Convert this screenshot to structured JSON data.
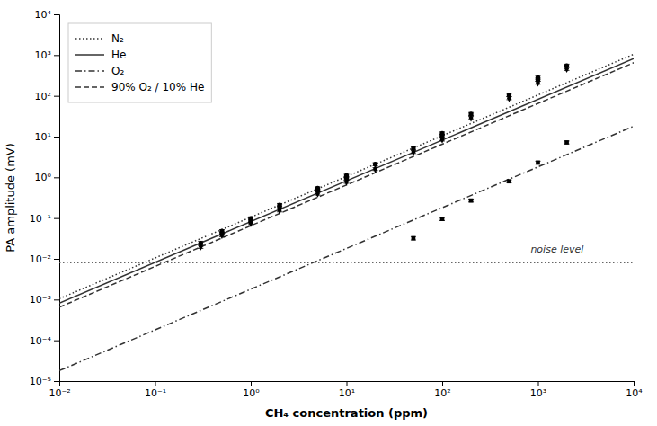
{
  "chart_data": {
    "type": "line",
    "log": true,
    "xlabel": "CH₄ concentration (ppm)",
    "ylabel": "PA amplitude (mV)",
    "xlim": [
      0.01,
      10000
    ],
    "ylim": [
      1e-05,
      10000
    ],
    "xticks": [
      {
        "value": 0.01,
        "label": "10⁻²"
      },
      {
        "value": 0.1,
        "label": "10⁻¹"
      },
      {
        "value": 1,
        "label": "10⁰"
      },
      {
        "value": 10,
        "label": "10¹"
      },
      {
        "value": 100,
        "label": "10²"
      },
      {
        "value": 1000,
        "label": "10³"
      },
      {
        "value": 10000,
        "label": "10⁴"
      }
    ],
    "yticks": [
      {
        "value": 1e-05,
        "label": "10⁻⁵"
      },
      {
        "value": 0.0001,
        "label": "10⁻⁴"
      },
      {
        "value": 0.001,
        "label": "10⁻³"
      },
      {
        "value": 0.01,
        "label": "10⁻²"
      },
      {
        "value": 0.1,
        "label": "10⁻¹"
      },
      {
        "value": 1,
        "label": "10⁰"
      },
      {
        "value": 10,
        "label": "10¹"
      },
      {
        "value": 100,
        "label": "10²"
      },
      {
        "value": 1000,
        "label": "10³"
      },
      {
        "value": 10000,
        "label": "10⁴"
      }
    ],
    "grid": false,
    "legend": "upper left",
    "series": [
      {
        "name": "N₂",
        "type": "line",
        "line_style": "dotted",
        "color": "#333333",
        "x": [
          0.01,
          10000
        ],
        "values": [
          0.00105,
          1050
        ]
      },
      {
        "name": "He",
        "type": "line",
        "line_style": "solid",
        "color": "#333333",
        "x": [
          0.01,
          10000
        ],
        "values": [
          0.00082,
          820
        ]
      },
      {
        "name": "O₂",
        "type": "line",
        "line_style": "dashdot",
        "color": "#333333",
        "x": [
          0.01,
          10000
        ],
        "values": [
          1.8e-05,
          18
        ]
      },
      {
        "name": "90% O₂ / 10% He",
        "type": "line",
        "line_style": "dashed",
        "color": "#333333",
        "x": [
          0.01,
          10000
        ],
        "values": [
          0.00065,
          650
        ]
      },
      {
        "type": "scatter",
        "marker": "circle",
        "color": "black",
        "x": [
          0.3,
          0.5,
          0.5,
          1.0,
          1.0,
          2.0,
          2.0,
          5.0,
          5.0,
          10.0,
          10.0,
          20.0,
          50.0,
          100.0,
          100.0,
          200.0,
          500.0,
          1000.0,
          1000.0,
          2000.0
        ],
        "values": [
          0.024,
          0.042,
          0.048,
          0.085,
          0.098,
          0.185,
          0.21,
          0.48,
          0.54,
          0.95,
          1.1,
          2.1,
          5.2,
          10.5,
          12.0,
          36.0,
          105.0,
          250.0,
          280.0,
          550.0
        ],
        "yerr": [
          0.003,
          0.004,
          0.004,
          0.008,
          0.009,
          0.015,
          0.018,
          0.04,
          0.045,
          0.08,
          0.09,
          0.18,
          0.4,
          0.9,
          1.0,
          3.0,
          9.0,
          22.0,
          25.0,
          50.0
        ]
      },
      {
        "type": "scatter",
        "marker": "diamond",
        "color": "black",
        "x": [
          0.3,
          0.5,
          1.0,
          2.0,
          5.0,
          10.0,
          20.0,
          50.0,
          100.0,
          200.0,
          500.0,
          1000.0,
          2000.0
        ],
        "values": [
          0.02,
          0.038,
          0.075,
          0.155,
          0.4,
          0.78,
          1.6,
          4.2,
          8.5,
          29.0,
          88.0,
          210.0,
          460.0
        ],
        "yerr": [
          0.002,
          0.003,
          0.006,
          0.013,
          0.033,
          0.065,
          0.13,
          0.35,
          0.7,
          2.5,
          7.5,
          18.0,
          40.0
        ]
      },
      {
        "type": "scatter",
        "marker": "square",
        "color": "black",
        "x": [
          50.0,
          100.0,
          200.0,
          500.0,
          1000.0,
          2000.0
        ],
        "values": [
          0.032,
          0.095,
          0.27,
          0.8,
          2.3,
          7.2
        ],
        "yerr": [
          0.003,
          0.008,
          0.022,
          0.065,
          0.19,
          0.6
        ]
      }
    ],
    "hlines": [
      {
        "y": 0.008,
        "line_style": "dotted",
        "color": "#666666"
      }
    ],
    "annotations": [
      {
        "text": "noise level",
        "x": 3000,
        "y": 0.013,
        "color": "#333333"
      }
    ]
  }
}
